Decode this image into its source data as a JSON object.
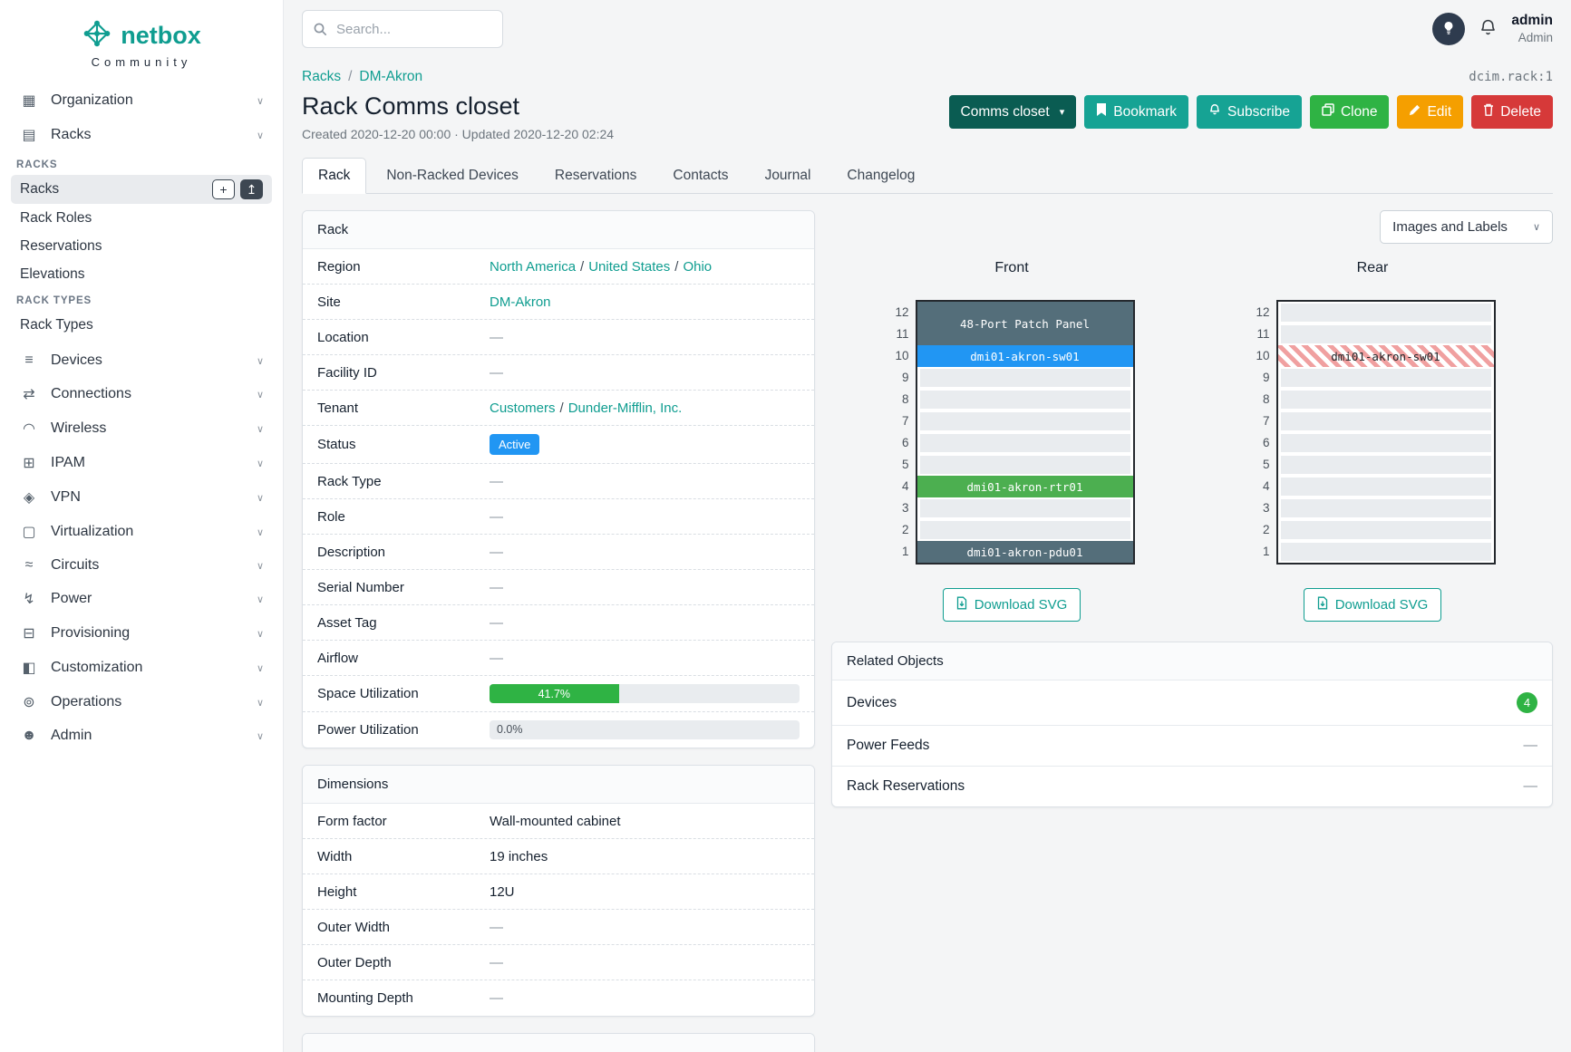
{
  "colors": {
    "accent": "#0f9d90",
    "context_button": "#0a5c52",
    "primary_teal": "#16a394",
    "green": "#2fb344",
    "yellow": "#f59f00",
    "red": "#d63939",
    "status_active_blue": "#2196f3",
    "badge_green": "#2fb344",
    "progress_green": "#2fb344"
  },
  "misc": {
    "slash": "/",
    "empty": "—",
    "chevron": "∨",
    "caret": "▾",
    "plus": "+",
    "upload": "↥"
  },
  "brand": {
    "name": "netbox",
    "subtitle": "Community"
  },
  "topbar": {
    "search_placeholder": "Search...",
    "user_name": "admin",
    "user_role": "Admin"
  },
  "sidebar": {
    "items": [
      {
        "label": "Organization",
        "glyph": "▦"
      },
      {
        "label": "Racks",
        "glyph": "▤"
      },
      {
        "label": "Devices",
        "glyph": "≡"
      },
      {
        "label": "Connections",
        "glyph": "⇄"
      },
      {
        "label": "Wireless",
        "glyph": "◠"
      },
      {
        "label": "IPAM",
        "glyph": "⊞"
      },
      {
        "label": "VPN",
        "glyph": "◈"
      },
      {
        "label": "Virtualization",
        "glyph": "▢"
      },
      {
        "label": "Circuits",
        "glyph": "≈"
      },
      {
        "label": "Power",
        "glyph": "↯"
      },
      {
        "label": "Provisioning",
        "glyph": "⊟"
      },
      {
        "label": "Customization",
        "glyph": "◧"
      },
      {
        "label": "Operations",
        "glyph": "⊚"
      },
      {
        "label": "Admin",
        "glyph": "☻"
      }
    ],
    "rack_menu": {
      "heading_racks": "RACKS",
      "items_racks": [
        "Racks",
        "Rack Roles",
        "Reservations",
        "Elevations"
      ],
      "heading_types": "RACK TYPES",
      "items_types": [
        "Rack Types"
      ]
    }
  },
  "page": {
    "breadcrumb": [
      "Racks",
      "DM-Akron"
    ],
    "object_id": "dcim.rack:1",
    "title": "Rack Comms closet",
    "subtitle": "Created 2020-12-20 00:00 · Updated 2020-12-20 02:24",
    "actions": {
      "context": "Comms closet",
      "bookmark": "Bookmark",
      "subscribe": "Subscribe",
      "clone": "Clone",
      "edit": "Edit",
      "delete": "Delete"
    },
    "tabs": [
      "Rack",
      "Non-Racked Devices",
      "Reservations",
      "Contacts",
      "Journal",
      "Changelog"
    ]
  },
  "rack_panel": {
    "title": "Rack",
    "labels": {
      "region": "Region",
      "site": "Site",
      "location": "Location",
      "facility_id": "Facility ID",
      "tenant": "Tenant",
      "status": "Status",
      "rack_type": "Rack Type",
      "role": "Role",
      "description": "Description",
      "serial_number": "Serial Number",
      "asset_tag": "Asset Tag",
      "airflow": "Airflow",
      "space_utilization": "Space Utilization",
      "power_utilization": "Power Utilization"
    },
    "region_links": [
      "North America",
      "United States",
      "Ohio"
    ],
    "site_link": "DM-Akron",
    "tenant_links": [
      "Customers",
      "Dunder-Mifflin, Inc."
    ],
    "status": "Active",
    "space_percent_label": "41.7%",
    "space_percent": 41.7,
    "power_percent_label": "0.0%",
    "power_percent": 0
  },
  "dimensions_panel": {
    "title": "Dimensions",
    "rows": [
      {
        "label": "Form factor",
        "value": "Wall-mounted cabinet"
      },
      {
        "label": "Width",
        "value": "19 inches"
      },
      {
        "label": "Height",
        "value": "12U"
      },
      {
        "label": "Outer Width",
        "value": "—"
      },
      {
        "label": "Outer Depth",
        "value": "—"
      },
      {
        "label": "Mounting Depth",
        "value": "—"
      }
    ]
  },
  "elevations": {
    "view_selector": "Images and Labels",
    "download_label": "Download SVG",
    "units": [
      12,
      11,
      10,
      9,
      8,
      7,
      6,
      5,
      4,
      3,
      2,
      1
    ],
    "front": {
      "title": "Front",
      "devices": [
        {
          "label": "48-Port Patch Panel",
          "unit": 11,
          "span": 2,
          "color": "#546e7a",
          "text_color": "#ffffff"
        },
        {
          "label": "dmi01-akron-sw01",
          "unit": 10,
          "span": 1,
          "color": "#2196f3",
          "text_color": "#ffffff"
        },
        {
          "label": "dmi01-akron-rtr01",
          "unit": 4,
          "span": 1,
          "color": "#4caf50",
          "text_color": "#ffffff"
        },
        {
          "label": "dmi01-akron-pdu01",
          "unit": 1,
          "span": 1,
          "color": "#546e7a",
          "text_color": "#ffffff"
        }
      ]
    },
    "rear": {
      "title": "Rear",
      "devices": [
        {
          "label": "dmi01-akron-sw01",
          "unit": 10,
          "span": 1,
          "hatched": true,
          "text_color": "#212529"
        }
      ]
    }
  },
  "related_panel": {
    "title": "Related Objects",
    "rows": [
      {
        "label": "Devices",
        "badge": "4"
      },
      {
        "label": "Power Feeds",
        "value": "—"
      },
      {
        "label": "Rack Reservations",
        "value": "—"
      }
    ]
  }
}
